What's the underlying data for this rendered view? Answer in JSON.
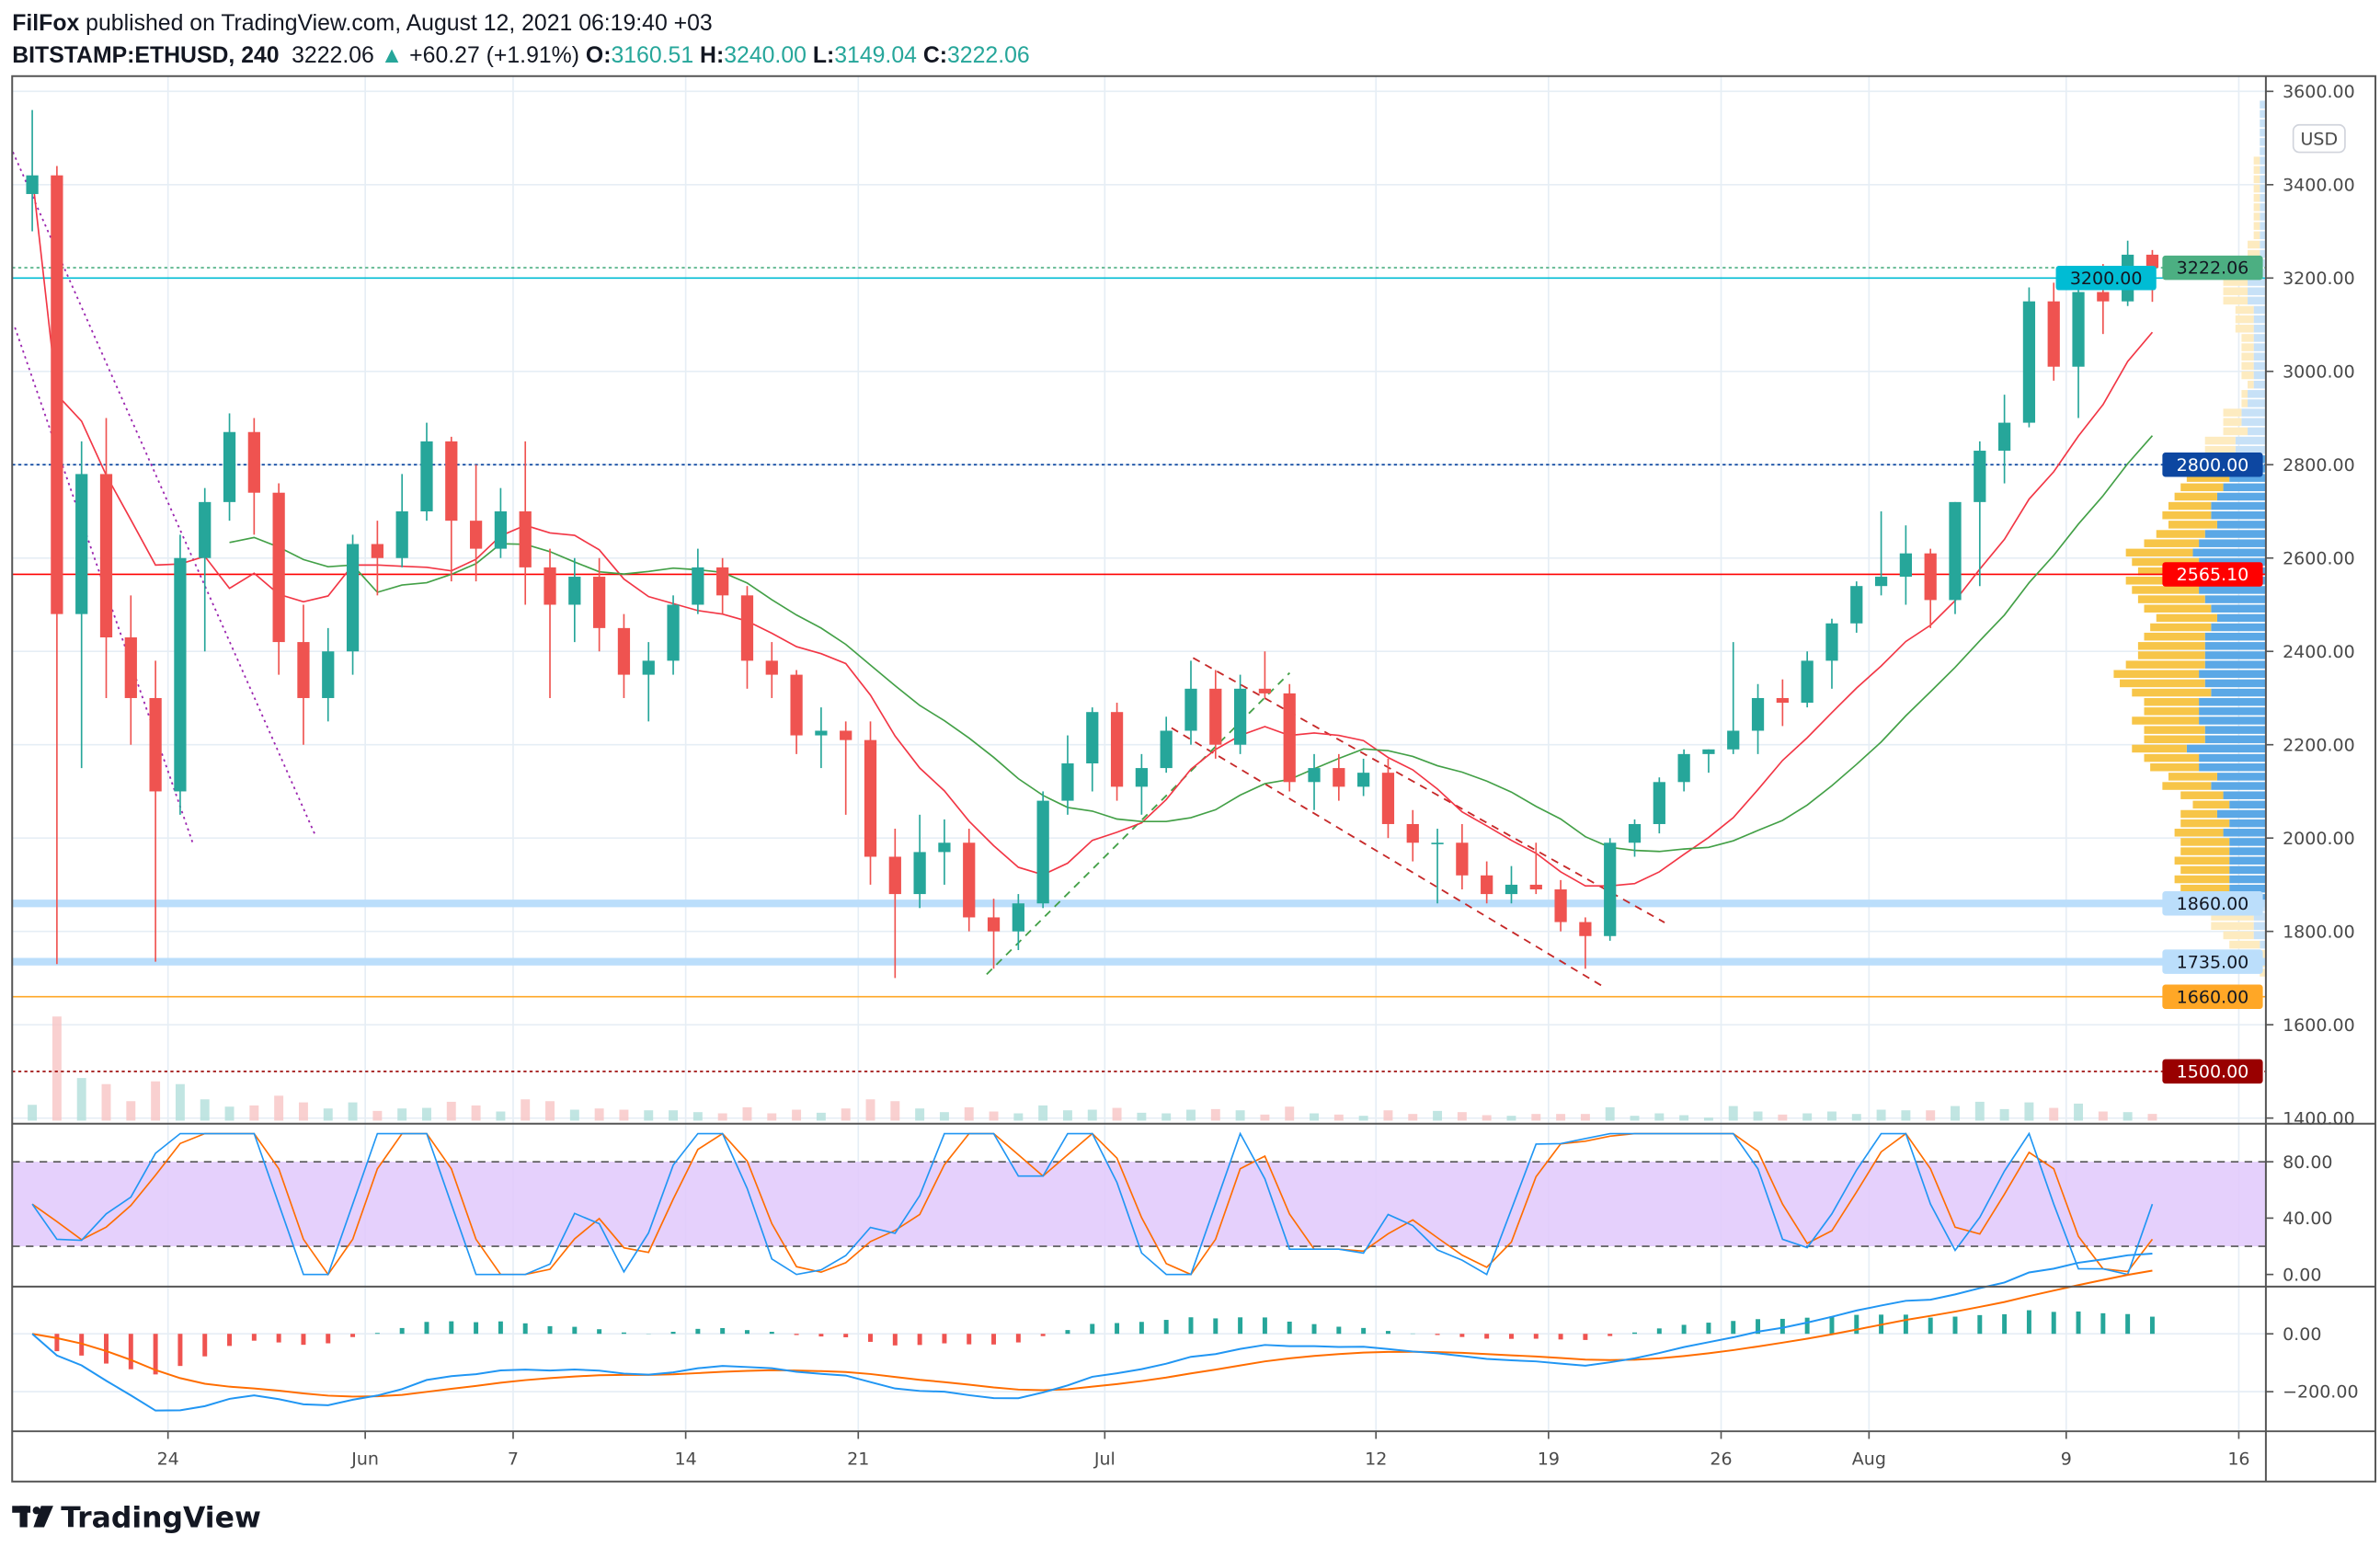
{
  "header": {
    "author": "FilFox",
    "published": "published on TradingView.com, August 12, 2021 06:19:40 +03",
    "symbol": "BITSTAMP:ETHUSD, 240",
    "last": "3222.06",
    "change": "+60.27 (+1.91%)",
    "o_label": "O:",
    "o": "3160.51",
    "h_label": "H:",
    "h": "3240.00",
    "l_label": "L:",
    "l": "3149.04",
    "c_label": "C:",
    "c": "3222.06",
    "up_color": "#26a69a"
  },
  "currency_label": "USD",
  "logo_text": "TradingView",
  "chart_data": {
    "type": "candlestick",
    "title": "BITSTAMP:ETHUSD, 240",
    "ylim": [
      1380,
      3620
    ],
    "yticks": [
      "3600.00",
      "3400.00",
      "3200.00",
      "3000.00",
      "2800.00",
      "2600.00",
      "2400.00",
      "2200.00",
      "2000.00",
      "1800.00",
      "1600.00",
      "1400.00"
    ],
    "xticks": [
      {
        "date": "2021-05-24",
        "label": "24"
      },
      {
        "date": "2021-06-01",
        "label": "Jun"
      },
      {
        "date": "2021-06-07",
        "label": "7"
      },
      {
        "date": "2021-06-14",
        "label": "14"
      },
      {
        "date": "2021-06-21",
        "label": "21"
      },
      {
        "date": "2021-07-01",
        "label": "Jul"
      },
      {
        "date": "2021-07-12",
        "label": "12"
      },
      {
        "date": "2021-07-19",
        "label": "19"
      },
      {
        "date": "2021-07-26",
        "label": "26"
      },
      {
        "date": "2021-08-01",
        "label": "Aug"
      },
      {
        "date": "2021-08-09",
        "label": "9"
      },
      {
        "date": "2021-08-16",
        "label": "16"
      }
    ],
    "ohlc_columns": [
      "date",
      "open",
      "high",
      "low",
      "close"
    ],
    "ohlc": [
      [
        "2021-05-18",
        3380,
        3560,
        3300,
        3420
      ],
      [
        "2021-05-19",
        3420,
        3440,
        1730,
        2480
      ],
      [
        "2021-05-20",
        2480,
        2850,
        2150,
        2780
      ],
      [
        "2021-05-21",
        2780,
        2900,
        2300,
        2430
      ],
      [
        "2021-05-22",
        2430,
        2520,
        2200,
        2300
      ],
      [
        "2021-05-23",
        2300,
        2380,
        1735,
        2100
      ],
      [
        "2021-05-24",
        2100,
        2650,
        2050,
        2600
      ],
      [
        "2021-05-25",
        2600,
        2750,
        2400,
        2720
      ],
      [
        "2021-05-26",
        2720,
        2910,
        2680,
        2870
      ],
      [
        "2021-05-27",
        2870,
        2900,
        2650,
        2740
      ],
      [
        "2021-05-28",
        2740,
        2760,
        2350,
        2420
      ],
      [
        "2021-05-29",
        2420,
        2500,
        2200,
        2300
      ],
      [
        "2021-05-30",
        2300,
        2450,
        2250,
        2400
      ],
      [
        "2021-05-31",
        2400,
        2650,
        2350,
        2630
      ],
      [
        "2021-06-01",
        2630,
        2680,
        2520,
        2600
      ],
      [
        "2021-06-02",
        2600,
        2780,
        2580,
        2700
      ],
      [
        "2021-06-03",
        2700,
        2890,
        2680,
        2850
      ],
      [
        "2021-06-04",
        2850,
        2860,
        2550,
        2680
      ],
      [
        "2021-06-05",
        2680,
        2800,
        2550,
        2620
      ],
      [
        "2021-06-06",
        2620,
        2750,
        2600,
        2700
      ],
      [
        "2021-06-07",
        2700,
        2850,
        2500,
        2580
      ],
      [
        "2021-06-08",
        2580,
        2620,
        2300,
        2500
      ],
      [
        "2021-06-09",
        2500,
        2600,
        2420,
        2560
      ],
      [
        "2021-06-10",
        2560,
        2600,
        2400,
        2450
      ],
      [
        "2021-06-11",
        2450,
        2480,
        2300,
        2350
      ],
      [
        "2021-06-12",
        2350,
        2420,
        2250,
        2380
      ],
      [
        "2021-06-13",
        2380,
        2520,
        2350,
        2500
      ],
      [
        "2021-06-14",
        2500,
        2620,
        2480,
        2580
      ],
      [
        "2021-06-15",
        2580,
        2600,
        2480,
        2520
      ],
      [
        "2021-06-16",
        2520,
        2540,
        2320,
        2380
      ],
      [
        "2021-06-17",
        2380,
        2420,
        2300,
        2350
      ],
      [
        "2021-06-18",
        2350,
        2360,
        2180,
        2220
      ],
      [
        "2021-06-19",
        2220,
        2280,
        2150,
        2230
      ],
      [
        "2021-06-20",
        2230,
        2250,
        2050,
        2210
      ],
      [
        "2021-06-21",
        2210,
        2250,
        1900,
        1960
      ],
      [
        "2021-06-22",
        1960,
        2020,
        1700,
        1880
      ],
      [
        "2021-06-23",
        1880,
        2050,
        1850,
        1970
      ],
      [
        "2021-06-24",
        1970,
        2040,
        1900,
        1990
      ],
      [
        "2021-06-25",
        1990,
        2020,
        1800,
        1830
      ],
      [
        "2021-06-26",
        1830,
        1870,
        1720,
        1800
      ],
      [
        "2021-06-27",
        1800,
        1880,
        1760,
        1860
      ],
      [
        "2021-06-28",
        1860,
        2100,
        1850,
        2080
      ],
      [
        "2021-06-29",
        2080,
        2220,
        2050,
        2160
      ],
      [
        "2021-06-30",
        2160,
        2280,
        2100,
        2270
      ],
      [
        "2021-07-01",
        2270,
        2290,
        2080,
        2110
      ],
      [
        "2021-07-02",
        2110,
        2180,
        2050,
        2150
      ],
      [
        "2021-07-03",
        2150,
        2260,
        2140,
        2230
      ],
      [
        "2021-07-04",
        2230,
        2380,
        2200,
        2320
      ],
      [
        "2021-07-05",
        2320,
        2360,
        2170,
        2200
      ],
      [
        "2021-07-06",
        2200,
        2350,
        2180,
        2320
      ],
      [
        "2021-07-07",
        2320,
        2400,
        2300,
        2310
      ],
      [
        "2021-07-08",
        2310,
        2330,
        2100,
        2120
      ],
      [
        "2021-07-09",
        2120,
        2180,
        2060,
        2150
      ],
      [
        "2021-07-10",
        2150,
        2180,
        2080,
        2110
      ],
      [
        "2021-07-11",
        2110,
        2170,
        2090,
        2140
      ],
      [
        "2021-07-12",
        2140,
        2170,
        2000,
        2030
      ],
      [
        "2021-07-13",
        2030,
        2060,
        1950,
        1990
      ],
      [
        "2021-07-14",
        1990,
        2020,
        1860,
        1990
      ],
      [
        "2021-07-15",
        1990,
        2030,
        1890,
        1920
      ],
      [
        "2021-07-16",
        1920,
        1950,
        1860,
        1880
      ],
      [
        "2021-07-17",
        1880,
        1940,
        1860,
        1900
      ],
      [
        "2021-07-18",
        1900,
        1990,
        1880,
        1890
      ],
      [
        "2021-07-19",
        1890,
        1910,
        1800,
        1820
      ],
      [
        "2021-07-20",
        1820,
        1830,
        1720,
        1790
      ],
      [
        "2021-07-21",
        1790,
        2000,
        1780,
        1990
      ],
      [
        "2021-07-22",
        1990,
        2040,
        1960,
        2030
      ],
      [
        "2021-07-23",
        2030,
        2130,
        2010,
        2120
      ],
      [
        "2021-07-24",
        2120,
        2190,
        2100,
        2180
      ],
      [
        "2021-07-25",
        2180,
        2190,
        2140,
        2190
      ],
      [
        "2021-07-26",
        2190,
        2420,
        2180,
        2230
      ],
      [
        "2021-07-27",
        2230,
        2330,
        2180,
        2300
      ],
      [
        "2021-07-28",
        2300,
        2340,
        2240,
        2290
      ],
      [
        "2021-07-29",
        2290,
        2400,
        2280,
        2380
      ],
      [
        "2021-07-30",
        2380,
        2470,
        2320,
        2460
      ],
      [
        "2021-07-31",
        2460,
        2550,
        2440,
        2540
      ],
      [
        "2021-08-01",
        2540,
        2700,
        2520,
        2560
      ],
      [
        "2021-08-02",
        2560,
        2670,
        2500,
        2610
      ],
      [
        "2021-08-03",
        2610,
        2620,
        2450,
        2510
      ],
      [
        "2021-08-04",
        2510,
        2720,
        2480,
        2720
      ],
      [
        "2021-08-05",
        2720,
        2850,
        2540,
        2830
      ],
      [
        "2021-08-06",
        2830,
        2950,
        2760,
        2890
      ],
      [
        "2021-08-07",
        2890,
        3180,
        2880,
        3150
      ],
      [
        "2021-08-08",
        3150,
        3190,
        2980,
        3010
      ],
      [
        "2021-08-09",
        3010,
        3180,
        2900,
        3170
      ],
      [
        "2021-08-10",
        3170,
        3230,
        3080,
        3150
      ],
      [
        "2021-08-11",
        3150,
        3280,
        3140,
        3250
      ],
      [
        "2021-08-12",
        3250,
        3260,
        3149,
        3222.06
      ]
    ],
    "levels": [
      {
        "price": 3222.06,
        "label": "3222.06",
        "color": "#4caf82",
        "text": "#131722",
        "style": "dotted"
      },
      {
        "price": 3200,
        "label": "3200.00",
        "color": "#00bcd4",
        "text": "#131722",
        "style": "solid"
      },
      {
        "price": 2800,
        "label": "2800.00",
        "color": "#0d47a1",
        "text": "#ffffff",
        "style": "dotted"
      },
      {
        "price": 2565.1,
        "label": "2565.10",
        "color": "#ff0000",
        "text": "#ffffff",
        "style": "solid"
      },
      {
        "price": 1860,
        "label": "1860.00",
        "color": "#bbdefb",
        "text": "#131722",
        "style": "thick"
      },
      {
        "price": 1735,
        "label": "1735.00",
        "color": "#bbdefb",
        "text": "#131722",
        "style": "thick"
      },
      {
        "price": 1660,
        "label": "1660.00",
        "color": "#ffa726",
        "text": "#131722",
        "style": "solid"
      },
      {
        "price": 1500,
        "label": "1500.00",
        "color": "#990000",
        "text": "#ffffff",
        "style": "dotted"
      }
    ],
    "trendlines": [
      {
        "from": [
          "2021-05-17 17:00",
          3470
        ],
        "to": [
          "2021-05-30 00:00",
          2003
        ],
        "color": "#9c27b0",
        "style": "dotted"
      },
      {
        "from": [
          "2021-05-17 19:00",
          3094
        ],
        "to": [
          "2021-05-25 00:00",
          1990
        ],
        "color": "#9c27b0",
        "style": "dotted"
      },
      {
        "from": [
          "2021-07-04 14:00",
          2386
        ],
        "to": [
          "2021-07-23 17:00",
          1819
        ],
        "color": "#c62828",
        "style": "dashed"
      },
      {
        "from": [
          "2021-07-03 17:00",
          2236
        ],
        "to": [
          "2021-07-21 05:00",
          1682
        ],
        "color": "#c62828",
        "style": "dashed"
      },
      {
        "from": [
          "2021-06-26 05:00",
          1708
        ],
        "to": [
          "2021-07-08 12:00",
          2354
        ],
        "color": "#43a047",
        "style": "dashed"
      }
    ],
    "stoch_rsi": {
      "yticks": [
        "80.00",
        "40.00",
        "0.00"
      ],
      "upper": 80,
      "lower": 20,
      "k_color": "#2196f3",
      "d_color": "#ff6d00",
      "band_color": "#e1c8fb"
    },
    "macd": {
      "yticks": [
        "0.00",
        "−200.00"
      ],
      "macd_color": "#2196f3",
      "signal_color": "#ff6d00"
    },
    "ma_colors": {
      "fast": "#f23645",
      "slow": "#43a047"
    }
  }
}
